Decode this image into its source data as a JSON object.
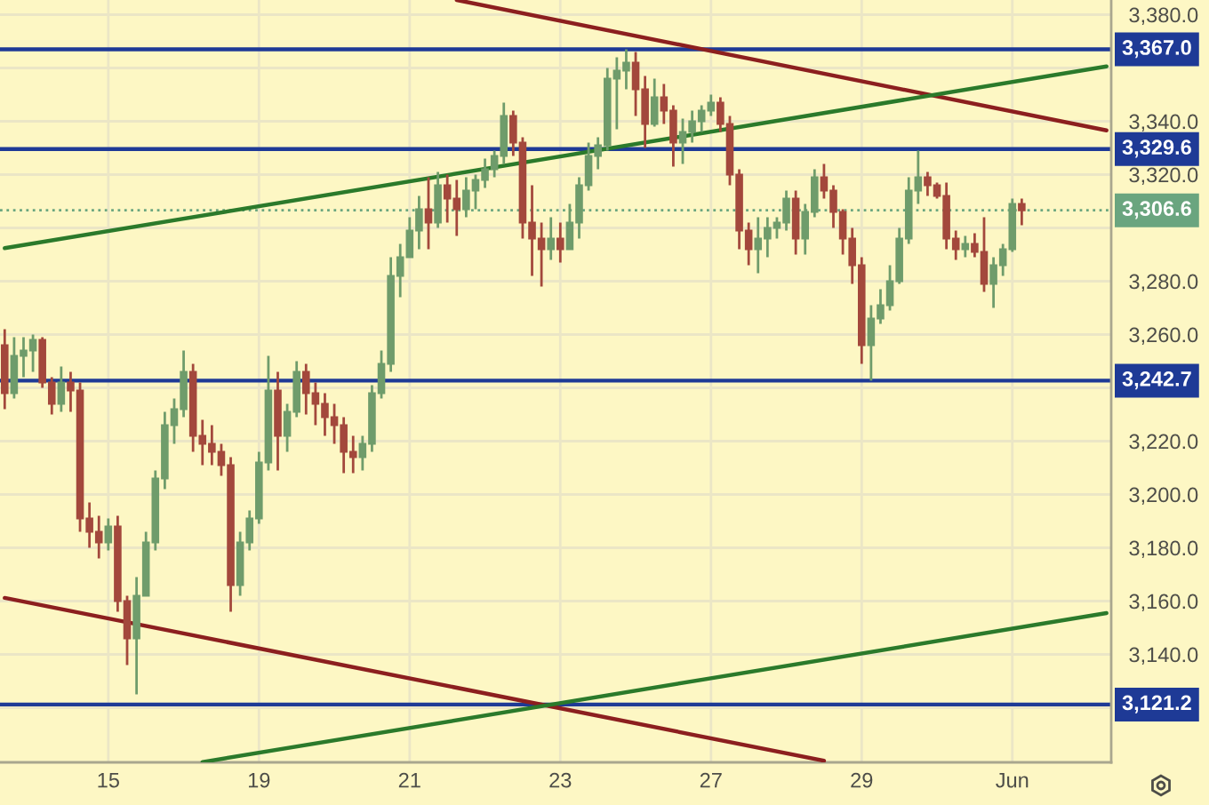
{
  "chart_data": {
    "type": "candlestick",
    "categories": [
      null,
      null,
      null,
      null,
      null,
      null,
      null,
      null,
      null,
      null,
      null,
      "15",
      null,
      null,
      null,
      null,
      null,
      null,
      null,
      null,
      null,
      null,
      null,
      null,
      null,
      null,
      null,
      "19",
      null,
      null,
      null,
      null,
      null,
      null,
      null,
      null,
      null,
      null,
      null,
      null,
      null,
      null,
      null,
      "21",
      null,
      null,
      null,
      null,
      null,
      null,
      null,
      null,
      null,
      null,
      null,
      null,
      null,
      null,
      null,
      "23",
      null,
      null,
      null,
      null,
      null,
      null,
      null,
      null,
      null,
      null,
      null,
      null,
      null,
      null,
      null,
      "27",
      null,
      null,
      null,
      null,
      null,
      null,
      null,
      null,
      null,
      null,
      null,
      null,
      null,
      null,
      null,
      "29",
      null,
      null,
      null,
      null,
      null,
      null,
      null,
      null,
      null,
      null,
      null,
      null,
      null,
      null,
      null,
      "Jun",
      null,
      null,
      null,
      null,
      null,
      null,
      null,
      null,
      null,
      null
    ],
    "ohlc": [
      [
        3256,
        3262,
        3232,
        3238
      ],
      [
        3238,
        3259,
        3236,
        3252
      ],
      [
        3252,
        3259,
        3244,
        3254
      ],
      [
        3254,
        3260,
        3246,
        3258
      ],
      [
        3258,
        3259,
        3240,
        3242
      ],
      [
        3242,
        3244,
        3230,
        3234
      ],
      [
        3234,
        3248,
        3231,
        3242
      ],
      [
        3242,
        3246,
        3231,
        3239
      ],
      [
        3239,
        3242,
        3186,
        3191
      ],
      [
        3191,
        3197,
        3180,
        3186
      ],
      [
        3186,
        3192,
        3176,
        3182
      ],
      [
        3182,
        3191,
        3179,
        3188
      ],
      [
        3188,
        3192,
        3156,
        3160
      ],
      [
        3160,
        3162,
        3136,
        3146
      ],
      [
        3146,
        3169,
        3125,
        3162
      ],
      [
        3162,
        3186,
        3162,
        3182
      ],
      [
        3182,
        3209,
        3179,
        3206
      ],
      [
        3206,
        3231,
        3202,
        3226
      ],
      [
        3226,
        3236,
        3219,
        3232
      ],
      [
        3232,
        3254,
        3229,
        3246
      ],
      [
        3246,
        3249,
        3216,
        3222
      ],
      [
        3222,
        3228,
        3211,
        3219
      ],
      [
        3219,
        3226,
        3211,
        3216
      ],
      [
        3216,
        3219,
        3207,
        3211
      ],
      [
        3211,
        3214,
        3156,
        3166
      ],
      [
        3166,
        3186,
        3162,
        3182
      ],
      [
        3182,
        3194,
        3179,
        3191
      ],
      [
        3191,
        3216,
        3189,
        3212
      ],
      [
        3212,
        3252,
        3209,
        3239
      ],
      [
        3239,
        3246,
        3209,
        3222
      ],
      [
        3222,
        3234,
        3216,
        3231
      ],
      [
        3231,
        3250,
        3229,
        3246
      ],
      [
        3246,
        3249,
        3230,
        3238
      ],
      [
        3238,
        3242,
        3226,
        3234
      ],
      [
        3234,
        3238,
        3222,
        3229
      ],
      [
        3229,
        3234,
        3219,
        3226
      ],
      [
        3226,
        3229,
        3208,
        3216
      ],
      [
        3216,
        3222,
        3208,
        3214
      ],
      [
        3214,
        3222,
        3209,
        3219
      ],
      [
        3219,
        3241,
        3216,
        3238
      ],
      [
        3238,
        3254,
        3236,
        3249
      ],
      [
        3249,
        3289,
        3246,
        3282
      ],
      [
        3282,
        3294,
        3274,
        3289
      ],
      [
        3289,
        3304,
        3289,
        3299
      ],
      [
        3299,
        3312,
        3292,
        3307
      ],
      [
        3307,
        3319,
        3292,
        3302
      ],
      [
        3302,
        3321,
        3300,
        3316
      ],
      [
        3316,
        3320,
        3302,
        3311
      ],
      [
        3311,
        3318,
        3297,
        3307
      ],
      [
        3307,
        3319,
        3304,
        3314
      ],
      [
        3314,
        3320,
        3307,
        3318
      ],
      [
        3318,
        3326,
        3315,
        3322
      ],
      [
        3322,
        3329,
        3319,
        3327
      ],
      [
        3327,
        3347,
        3324,
        3342
      ],
      [
        3342,
        3344,
        3327,
        3332
      ],
      [
        3332,
        3334,
        3296,
        3302
      ],
      [
        3302,
        3316,
        3282,
        3296
      ],
      [
        3296,
        3302,
        3278,
        3292
      ],
      [
        3292,
        3304,
        3288,
        3296
      ],
      [
        3296,
        3302,
        3287,
        3292
      ],
      [
        3292,
        3309,
        3292,
        3302
      ],
      [
        3302,
        3319,
        3296,
        3316
      ],
      [
        3316,
        3332,
        3314,
        3327
      ],
      [
        3327,
        3334,
        3322,
        3331
      ],
      [
        3331,
        3360,
        3329,
        3356
      ],
      [
        3356,
        3364,
        3337,
        3359
      ],
      [
        3359,
        3367,
        3352,
        3362
      ],
      [
        3362,
        3366,
        3342,
        3352
      ],
      [
        3352,
        3357,
        3330,
        3339
      ],
      [
        3339,
        3356,
        3338,
        3349
      ],
      [
        3349,
        3354,
        3339,
        3344
      ],
      [
        3344,
        3346,
        3323,
        3332
      ],
      [
        3332,
        3341,
        3324,
        3336
      ],
      [
        3336,
        3344,
        3332,
        3340
      ],
      [
        3340,
        3346,
        3336,
        3344
      ],
      [
        3344,
        3350,
        3342,
        3347
      ],
      [
        3347,
        3349,
        3336,
        3339
      ],
      [
        3339,
        3342,
        3316,
        3320
      ],
      [
        3320,
        3322,
        3292,
        3299
      ],
      [
        3299,
        3302,
        3286,
        3292
      ],
      [
        3292,
        3304,
        3283,
        3296
      ],
      [
        3296,
        3304,
        3289,
        3300
      ],
      [
        3300,
        3304,
        3296,
        3302
      ],
      [
        3302,
        3314,
        3299,
        3311
      ],
      [
        3311,
        3314,
        3290,
        3296
      ],
      [
        3296,
        3309,
        3290,
        3306
      ],
      [
        3306,
        3322,
        3304,
        3319
      ],
      [
        3319,
        3324,
        3311,
        3314
      ],
      [
        3314,
        3316,
        3300,
        3306
      ],
      [
        3306,
        3307,
        3290,
        3296
      ],
      [
        3296,
        3300,
        3279,
        3286
      ],
      [
        3286,
        3289,
        3249,
        3256
      ],
      [
        3256,
        3271,
        3242.7,
        3266
      ],
      [
        3266,
        3277,
        3264,
        3271
      ],
      [
        3271,
        3286,
        3269,
        3280
      ],
      [
        3280,
        3300,
        3279,
        3296
      ],
      [
        3296,
        3319,
        3294,
        3314
      ],
      [
        3314,
        3329,
        3309,
        3319
      ],
      [
        3319,
        3321,
        3312,
        3316
      ],
      [
        3316,
        3317,
        3311,
        3312
      ],
      [
        3312,
        3317,
        3292,
        3296
      ],
      [
        3296,
        3299,
        3288,
        3292
      ],
      [
        3292,
        3297,
        3289,
        3294
      ],
      [
        3294,
        3298,
        3289,
        3291
      ],
      [
        3291,
        3304,
        3276,
        3279
      ],
      [
        3279,
        3289,
        3270,
        3286
      ],
      [
        3286,
        3294,
        3282,
        3292
      ],
      [
        3292,
        3311,
        3291,
        3309
      ],
      [
        3309,
        3311,
        3301,
        3306.6
      ],
      null,
      null,
      null,
      null,
      null,
      null,
      null,
      null,
      null
    ],
    "colors": [
      "#a3483c",
      "#6f9c6b",
      "#6f9c6b",
      "#6f9c6b",
      "#a3483c",
      "#a3483c",
      "#6f9c6b",
      "#a3483c",
      "#a3483c",
      "#a3483c",
      "#a3483c",
      "#6f9c6b",
      "#a3483c",
      "#a3483c",
      "#6f9c6b",
      "#6f9c6b",
      "#6f9c6b",
      "#6f9c6b",
      "#6f9c6b",
      "#6f9c6b",
      "#a3483c",
      "#a3483c",
      "#a3483c",
      "#a3483c",
      "#a3483c",
      "#6f9c6b",
      "#6f9c6b",
      "#6f9c6b",
      "#6f9c6b",
      "#a3483c",
      "#6f9c6b",
      "#6f9c6b",
      "#a3483c",
      "#a3483c",
      "#a3483c",
      "#a3483c",
      "#a3483c",
      "#a3483c",
      "#6f9c6b",
      "#6f9c6b",
      "#6f9c6b",
      "#6f9c6b",
      "#6f9c6b",
      "#6f9c6b",
      "#6f9c6b",
      "#a3483c",
      "#6f9c6b",
      "#a3483c",
      "#a3483c",
      "#6f9c6b",
      "#6f9c6b",
      "#6f9c6b",
      "#6f9c6b",
      "#6f9c6b",
      "#a3483c",
      "#a3483c",
      "#a3483c",
      "#a3483c",
      "#6f9c6b",
      "#a3483c",
      "#6f9c6b",
      "#6f9c6b",
      "#6f9c6b",
      "#6f9c6b",
      "#6f9c6b",
      "#6f9c6b",
      "#6f9c6b",
      "#a3483c",
      "#a3483c",
      "#6f9c6b",
      "#a3483c",
      "#a3483c",
      "#6f9c6b",
      "#6f9c6b",
      "#6f9c6b",
      "#6f9c6b",
      "#a3483c",
      "#a3483c",
      "#a3483c",
      "#a3483c",
      "#6f9c6b",
      "#6f9c6b",
      "#6f9c6b",
      "#6f9c6b",
      "#a3483c",
      "#6f9c6b",
      "#6f9c6b",
      "#a3483c",
      "#a3483c",
      "#a3483c",
      "#a3483c",
      "#a3483c",
      "#6f9c6b",
      "#6f9c6b",
      "#6f9c6b",
      "#6f9c6b",
      "#6f9c6b",
      "#6f9c6b",
      "#a3483c",
      "#a3483c",
      "#a3483c",
      "#a3483c",
      "#6f9c6b",
      "#a3483c",
      "#a3483c",
      "#6f9c6b",
      "#6f9c6b",
      "#6f9c6b",
      "#a3483c",
      null,
      null,
      null,
      null,
      null,
      null,
      null,
      null,
      null
    ],
    "series": [
      {
        "type": "line",
        "color": "#8c1f1f",
        "values": [
          null,
          null,
          null,
          null,
          null,
          null,
          null,
          null,
          null,
          null,
          null,
          null,
          null,
          null,
          null,
          null,
          null,
          null,
          null,
          null,
          null,
          null,
          null,
          null,
          null,
          null,
          null,
          null,
          null,
          null,
          null,
          null,
          null,
          null,
          null,
          null,
          null,
          null,
          null,
          null,
          null,
          null,
          null,
          null,
          null,
          null,
          null,
          null,
          3385.5,
          null,
          null,
          null,
          null,
          null,
          null,
          null,
          null,
          null,
          null,
          null,
          null,
          null,
          null,
          null,
          null,
          null,
          null,
          null,
          null,
          null,
          null,
          null,
          null,
          null,
          null,
          null,
          null,
          null,
          null,
          null,
          null,
          null,
          null,
          null,
          null,
          null,
          null,
          null,
          null,
          null,
          null,
          null,
          null,
          null,
          null,
          null,
          null,
          null,
          null,
          null,
          null,
          null,
          null,
          null,
          null,
          null,
          null,
          null,
          null,
          null,
          null,
          null,
          null,
          null,
          null,
          null,
          null,
          3336.6
        ]
      },
      {
        "type": "line",
        "color": "#8c1f1f",
        "values": [
          3161.2,
          null,
          null,
          null,
          null,
          null,
          null,
          null,
          null,
          null,
          null,
          null,
          null,
          null,
          null,
          null,
          null,
          null,
          null,
          null,
          null,
          null,
          null,
          null,
          null,
          null,
          null,
          null,
          null,
          null,
          null,
          null,
          null,
          null,
          null,
          null,
          null,
          null,
          null,
          null,
          null,
          null,
          null,
          null,
          null,
          null,
          null,
          null,
          null,
          null,
          null,
          null,
          null,
          null,
          null,
          null,
          null,
          null,
          null,
          null,
          null,
          null,
          null,
          null,
          null,
          null,
          null,
          null,
          null,
          null,
          null,
          null,
          null,
          null,
          null,
          null,
          null,
          null,
          null,
          null,
          null,
          null,
          null,
          null,
          null,
          null,
          null,
          3100.1,
          null,
          null,
          null,
          null,
          null,
          null,
          null,
          null,
          null,
          null,
          null,
          null,
          null,
          null,
          null,
          null,
          null,
          null,
          null,
          null,
          null,
          null,
          null,
          null,
          null,
          null,
          null,
          null,
          null,
          null
        ]
      },
      {
        "type": "line",
        "color": "#2b7a2b",
        "values": [
          3292.4,
          null,
          null,
          null,
          null,
          null,
          null,
          null,
          null,
          null,
          null,
          null,
          null,
          null,
          null,
          null,
          null,
          null,
          null,
          null,
          null,
          null,
          null,
          null,
          null,
          null,
          null,
          null,
          null,
          null,
          null,
          null,
          null,
          null,
          null,
          null,
          null,
          null,
          null,
          null,
          null,
          null,
          null,
          null,
          null,
          null,
          null,
          null,
          null,
          null,
          null,
          null,
          null,
          null,
          null,
          null,
          null,
          null,
          null,
          null,
          null,
          null,
          null,
          null,
          null,
          null,
          null,
          null,
          null,
          null,
          null,
          null,
          null,
          null,
          null,
          null,
          null,
          null,
          null,
          null,
          null,
          null,
          null,
          null,
          null,
          null,
          null,
          null,
          null,
          null,
          null,
          null,
          null,
          null,
          null,
          null,
          null,
          null,
          null,
          null,
          null,
          null,
          null,
          null,
          null,
          null,
          null,
          null,
          null,
          null,
          null,
          null,
          null,
          null,
          null,
          null,
          null,
          3360.6
        ]
      },
      {
        "type": "line",
        "color": "#2b7a2b",
        "values": [
          null,
          null,
          null,
          null,
          null,
          null,
          null,
          null,
          null,
          null,
          null,
          null,
          null,
          null,
          null,
          null,
          null,
          null,
          null,
          null,
          null,
          3099.6,
          null,
          null,
          null,
          null,
          null,
          null,
          null,
          null,
          null,
          null,
          null,
          null,
          null,
          null,
          null,
          null,
          null,
          null,
          null,
          null,
          null,
          null,
          null,
          null,
          null,
          null,
          null,
          null,
          null,
          null,
          null,
          null,
          null,
          null,
          null,
          null,
          null,
          null,
          null,
          null,
          null,
          null,
          null,
          null,
          null,
          null,
          null,
          null,
          null,
          null,
          null,
          null,
          null,
          null,
          null,
          null,
          null,
          null,
          null,
          null,
          null,
          null,
          null,
          null,
          null,
          null,
          null,
          null,
          null,
          null,
          null,
          null,
          null,
          null,
          null,
          null,
          null,
          null,
          null,
          null,
          null,
          null,
          null,
          null,
          null,
          null,
          null,
          null,
          null,
          null,
          null,
          null,
          null,
          null,
          null,
          3155.5
        ]
      }
    ],
    "ref_lines": [
      {
        "axis": "y",
        "value": 3367.0,
        "label": "3,367.0",
        "color": "#1e3a96"
      },
      {
        "axis": "y",
        "value": 3329.6,
        "label": "3,329.6",
        "color": "#1e3a96"
      },
      {
        "axis": "y",
        "value": 3306.6,
        "label": "3,306.6",
        "color": "#6aa57f",
        "line_style": "dotted"
      },
      {
        "axis": "y",
        "value": 3242.7,
        "label": "3,242.7",
        "color": "#1e3a96"
      },
      {
        "axis": "y",
        "value": 3121.2,
        "label": "3,121.2",
        "color": "#1e3a96"
      }
    ],
    "ylim": [
      3099.5,
      3385.5
    ],
    "yticks": [
      {
        "value": 3120,
        "label": null
      },
      {
        "value": 3140,
        "label": "3,140.0"
      },
      {
        "value": 3160,
        "label": "3,160.0"
      },
      {
        "value": 3180,
        "label": "3,180.0"
      },
      {
        "value": 3200,
        "label": "3,200.0"
      },
      {
        "value": 3220,
        "label": "3,220.0"
      },
      {
        "value": 3240,
        "label": null
      },
      {
        "value": 3260,
        "label": "3,260.0"
      },
      {
        "value": 3280,
        "label": "3,280.0"
      },
      {
        "value": 3300,
        "label": null
      },
      {
        "value": 3320,
        "label": "3,320.0"
      },
      {
        "value": 3340,
        "label": "3,340.0"
      },
      {
        "value": 3360,
        "label": null
      },
      {
        "value": 3380,
        "label": "3,380.0"
      }
    ],
    "grid": true
  }
}
